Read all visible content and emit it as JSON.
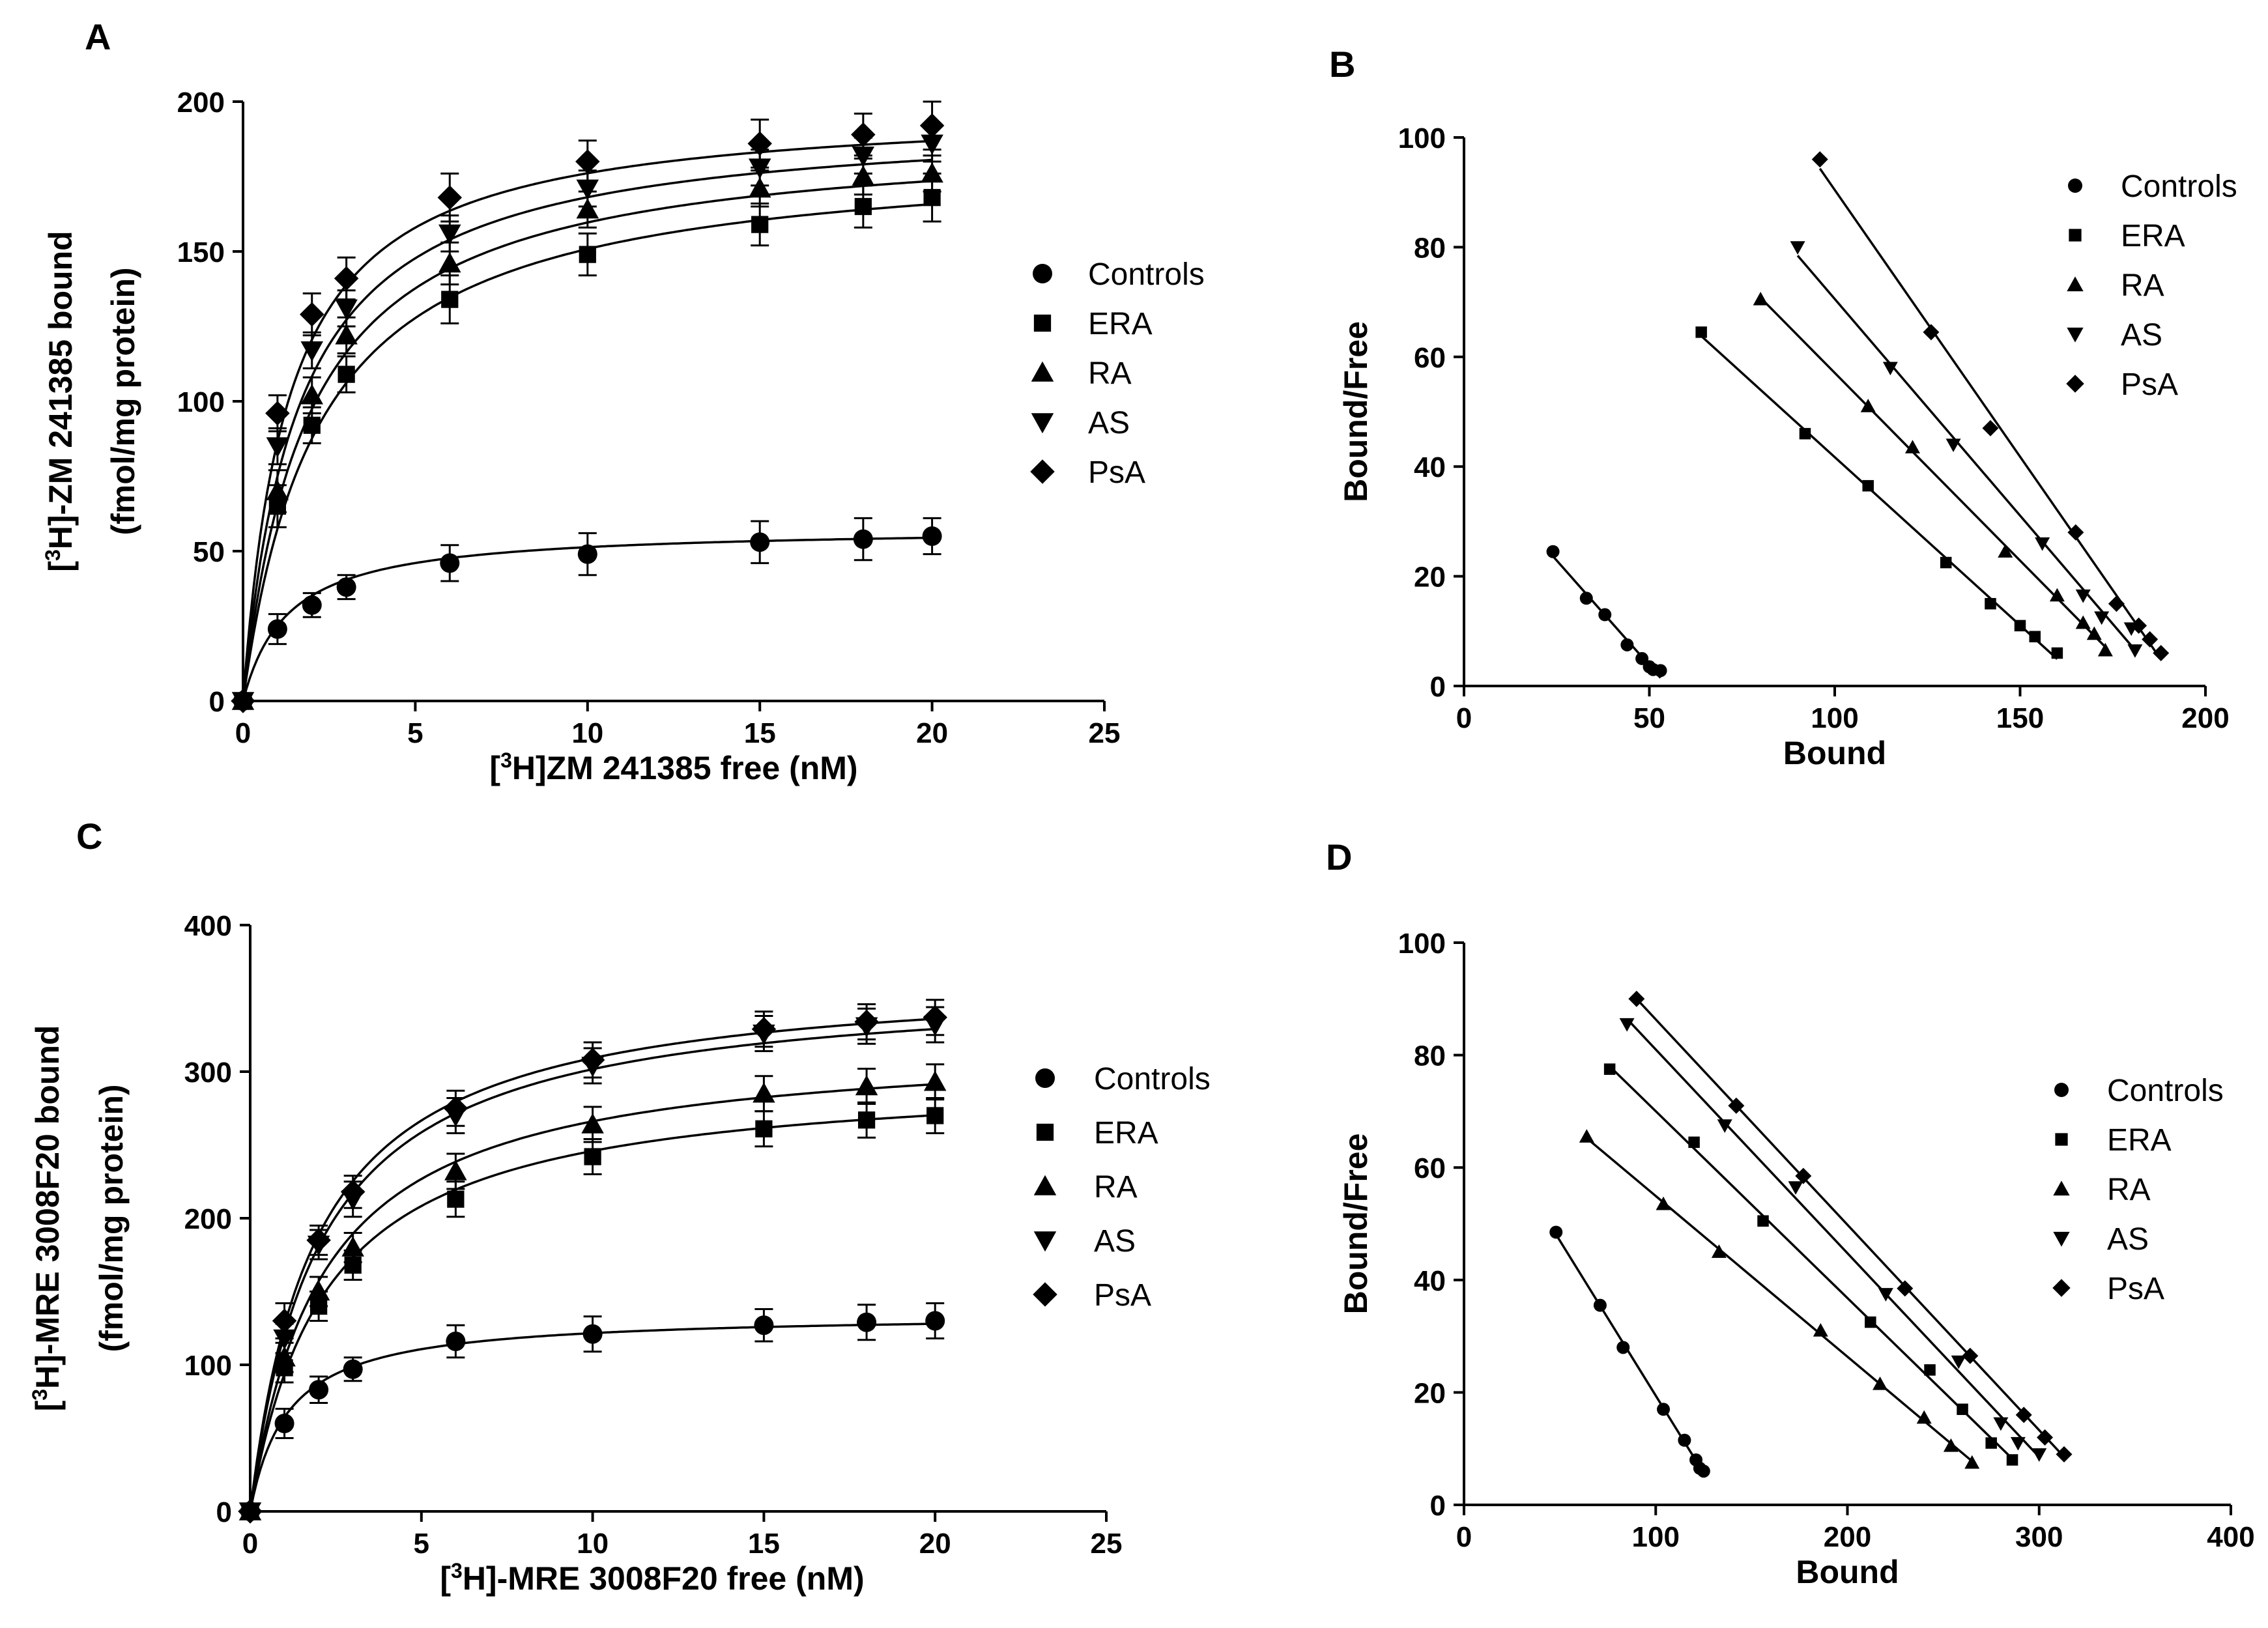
{
  "colors": {
    "ink": "#000000",
    "background": "#ffffff"
  },
  "chart_data": [
    {
      "panel": "A",
      "type": "line",
      "subtype": "saturation",
      "xlabel_parts": [
        "[",
        "3",
        "H]ZM 241385 free (nM)"
      ],
      "ylabel_lines": [
        [
          "[",
          "3",
          "H]-ZM 241385 bound"
        ],
        [
          "(fmol/mg protein)"
        ]
      ],
      "xlim": [
        0,
        25
      ],
      "ylim": [
        0,
        200
      ],
      "xticks": [
        0,
        5,
        10,
        15,
        20,
        25
      ],
      "yticks": [
        0,
        50,
        100,
        150,
        200
      ],
      "error_bars": true,
      "legend": "right",
      "x": [
        0,
        1,
        2,
        3,
        6,
        10,
        15,
        18,
        20
      ],
      "series": [
        {
          "name": "Controls",
          "marker": "circle",
          "values": [
            0,
            24,
            32,
            38,
            46,
            49,
            53,
            54,
            55
          ],
          "err": [
            0,
            5,
            4,
            4,
            6,
            7,
            7,
            7,
            6
          ],
          "bmax": 58,
          "kd": 1.3
        },
        {
          "name": "ERA",
          "marker": "square",
          "values": [
            0,
            65,
            92,
            109,
            134,
            149,
            159,
            165,
            168
          ],
          "err": [
            0,
            7,
            6,
            6,
            8,
            7,
            7,
            7,
            8
          ],
          "bmax": 184,
          "kd": 2.2
        },
        {
          "name": "RA",
          "marker": "triangle",
          "values": [
            0,
            70,
            102,
            122,
            146,
            164,
            171,
            175,
            176
          ],
          "err": [
            0,
            7,
            6,
            6,
            7,
            6,
            6,
            6,
            6
          ],
          "bmax": 190,
          "kd": 1.9
        },
        {
          "name": "AS",
          "marker": "triangle-down",
          "values": [
            0,
            85,
            117,
            131,
            156,
            171,
            178,
            182,
            186
          ],
          "err": [
            0,
            6,
            6,
            6,
            6,
            6,
            6,
            6,
            6
          ],
          "bmax": 195,
          "kd": 1.6
        },
        {
          "name": "PsA",
          "marker": "diamond",
          "values": [
            0,
            96,
            129,
            141,
            168,
            180,
            186,
            189,
            192
          ],
          "err": [
            0,
            6,
            7,
            7,
            8,
            7,
            8,
            7,
            8
          ],
          "bmax": 199,
          "kd": 1.3
        }
      ]
    },
    {
      "panel": "B",
      "type": "scatter",
      "subtype": "scatchard",
      "xlabel": "Bound",
      "ylabel": "Bound/Free",
      "xlim": [
        0,
        200
      ],
      "ylim": [
        0,
        100
      ],
      "xticks": [
        0,
        50,
        100,
        150,
        200
      ],
      "yticks": [
        0,
        20,
        40,
        60,
        80,
        100
      ],
      "legend": "top-right",
      "series": [
        {
          "name": "Controls",
          "marker": "circle",
          "points": [
            [
              24,
              24.5
            ],
            [
              33,
              16
            ],
            [
              38,
              13
            ],
            [
              44,
              7.5
            ],
            [
              48,
              5
            ],
            [
              50,
              3.5
            ],
            [
              51,
              3
            ],
            [
              53,
              2.8
            ]
          ]
        },
        {
          "name": "ERA",
          "marker": "square",
          "points": [
            [
              64,
              64.5
            ],
            [
              92,
              46
            ],
            [
              109,
              36.5
            ],
            [
              130,
              22.5
            ],
            [
              142,
              15
            ],
            [
              150,
              11
            ],
            [
              154,
              9
            ],
            [
              160,
              6
            ]
          ]
        },
        {
          "name": "RA",
          "marker": "triangle",
          "points": [
            [
              80,
              70.5
            ],
            [
              109,
              51
            ],
            [
              121,
              43.5
            ],
            [
              146,
              24.5
            ],
            [
              160,
              16.5
            ],
            [
              167,
              11.5
            ],
            [
              170,
              9.5
            ],
            [
              173,
              6.5
            ]
          ]
        },
        {
          "name": "AS",
          "marker": "triangle-down",
          "points": [
            [
              90,
              80
            ],
            [
              115,
              58
            ],
            [
              132,
              44
            ],
            [
              156,
              26
            ],
            [
              167,
              16.5
            ],
            [
              172,
              12.5
            ],
            [
              180,
              10.5
            ],
            [
              181,
              6.5
            ]
          ]
        },
        {
          "name": "PsA",
          "marker": "diamond",
          "points": [
            [
              96,
              96
            ],
            [
              126,
              64.5
            ],
            [
              142,
              47
            ],
            [
              165,
              28
            ],
            [
              176,
              15
            ],
            [
              182,
              11
            ],
            [
              185,
              8.5
            ],
            [
              188,
              6
            ]
          ]
        }
      ]
    },
    {
      "panel": "C",
      "type": "line",
      "subtype": "saturation",
      "xlabel_parts": [
        "[",
        "3",
        "H]-MRE 3008F20 free (nM)"
      ],
      "ylabel_lines": [
        [
          "[",
          "3",
          "H]-MRE 3008F20 bound"
        ],
        [
          "(fmol/mg protein)"
        ]
      ],
      "xlim": [
        0,
        25
      ],
      "ylim": [
        0,
        400
      ],
      "xticks": [
        0,
        5,
        10,
        15,
        20,
        25
      ],
      "yticks": [
        0,
        100,
        200,
        300,
        400
      ],
      "error_bars": true,
      "legend": "right",
      "x": [
        0,
        1,
        2,
        3,
        6,
        10,
        15,
        18,
        20
      ],
      "series": [
        {
          "name": "Controls",
          "marker": "circle",
          "values": [
            0,
            60,
            83,
            97,
            116,
            121,
            127,
            129,
            130
          ],
          "err": [
            0,
            10,
            9,
            8,
            11,
            12,
            11,
            12,
            12
          ],
          "bmax": 135,
          "kd": 1.1
        },
        {
          "name": "ERA",
          "marker": "square",
          "values": [
            0,
            98,
            140,
            168,
            213,
            242,
            261,
            267,
            270
          ],
          "err": [
            0,
            10,
            10,
            10,
            12,
            12,
            12,
            12,
            12
          ],
          "bmax": 300,
          "kd": 2.2
        },
        {
          "name": "RA",
          "marker": "triangle",
          "values": [
            0,
            105,
            150,
            180,
            232,
            264,
            285,
            290,
            293
          ],
          "err": [
            0,
            10,
            10,
            10,
            12,
            12,
            12,
            12,
            12
          ],
          "bmax": 322,
          "kd": 2.1
        },
        {
          "name": "AS",
          "marker": "triangle-down",
          "values": [
            0,
            118,
            182,
            213,
            270,
            304,
            326,
            331,
            332
          ],
          "err": [
            0,
            10,
            10,
            12,
            12,
            12,
            12,
            12,
            12
          ],
          "bmax": 362,
          "kd": 2.0
        },
        {
          "name": "PsA",
          "marker": "diamond",
          "values": [
            0,
            130,
            185,
            218,
            275,
            308,
            329,
            334,
            337
          ],
          "err": [
            0,
            12,
            10,
            11,
            12,
            12,
            12,
            12,
            12
          ],
          "bmax": 368,
          "kd": 1.9
        }
      ]
    },
    {
      "panel": "D",
      "type": "scatter",
      "subtype": "scatchard",
      "xlabel": "Bound",
      "ylabel": "Bound/Free",
      "xlim": [
        0,
        400
      ],
      "ylim": [
        0,
        100
      ],
      "xticks": [
        0,
        100,
        200,
        300,
        400
      ],
      "yticks": [
        0,
        20,
        40,
        60,
        80,
        100
      ],
      "legend": "right",
      "series": [
        {
          "name": "Controls",
          "marker": "circle",
          "points": [
            [
              48,
              48.5
            ],
            [
              71,
              35.5
            ],
            [
              83,
              28
            ],
            [
              104,
              17
            ],
            [
              115,
              11.5
            ],
            [
              121,
              8
            ],
            [
              123,
              6.5
            ],
            [
              125,
              6
            ]
          ]
        },
        {
          "name": "ERA",
          "marker": "square",
          "points": [
            [
              76,
              77.5
            ],
            [
              120,
              64.5
            ],
            [
              156,
              50.5
            ],
            [
              212,
              32.5
            ],
            [
              243,
              24
            ],
            [
              260,
              17
            ],
            [
              275,
              11
            ],
            [
              286,
              8
            ]
          ]
        },
        {
          "name": "RA",
          "marker": "triangle",
          "points": [
            [
              64,
              65.5
            ],
            [
              104,
              53.5
            ],
            [
              133,
              45
            ],
            [
              186,
              31
            ],
            [
              217,
              21.5
            ],
            [
              240,
              15.5
            ],
            [
              254,
              10.5
            ],
            [
              265,
              7.5
            ]
          ]
        },
        {
          "name": "AS",
          "marker": "triangle-down",
          "points": [
            [
              85,
              85.5
            ],
            [
              136,
              67.5
            ],
            [
              173,
              56.5
            ],
            [
              220,
              37.5
            ],
            [
              258,
              25.5
            ],
            [
              280,
              14.5
            ],
            [
              289,
              11
            ],
            [
              300,
              9
            ]
          ]
        },
        {
          "name": "PsA",
          "marker": "diamond",
          "points": [
            [
              90,
              90
            ],
            [
              142,
              71
            ],
            [
              177,
              58.5
            ],
            [
              230,
              38.5
            ],
            [
              264,
              26.5
            ],
            [
              292,
              16
            ],
            [
              303,
              12
            ],
            [
              313,
              9
            ]
          ]
        }
      ]
    }
  ]
}
